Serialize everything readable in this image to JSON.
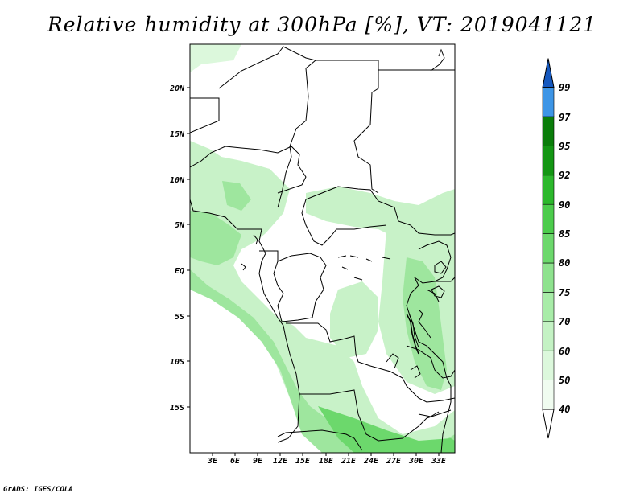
{
  "title": "Relative humidity at 300hPa [%], VT: 2019041121",
  "credit": "GrADS: IGES/COLA",
  "map": {
    "lon_ticks": [
      "3E",
      "6E",
      "9E",
      "12E",
      "15E",
      "18E",
      "21E",
      "24E",
      "27E",
      "30E",
      "33E"
    ],
    "lat_ticks": [
      "20N",
      "15N",
      "10N",
      "5N",
      "EQ",
      "5S",
      "10S",
      "15S"
    ]
  },
  "colorbar": {
    "levels": [
      "40",
      "50",
      "60",
      "70",
      "75",
      "80",
      "85",
      "90",
      "92",
      "95",
      "97",
      "99"
    ],
    "colors": [
      "#f0fcf0",
      "#dcf8dc",
      "#c4f2c4",
      "#a8eca8",
      "#8ee28e",
      "#6cd86c",
      "#4ccc4c",
      "#2cb82c",
      "#139613",
      "#0a7d0a",
      "#3d95e6",
      "#2077d2",
      "#1558bf"
    ]
  },
  "colors": {
    "light_green": "#c8f2c8",
    "mid_green": "#9ee69e",
    "dark_green": "#6cd86c",
    "border": "#000000"
  }
}
